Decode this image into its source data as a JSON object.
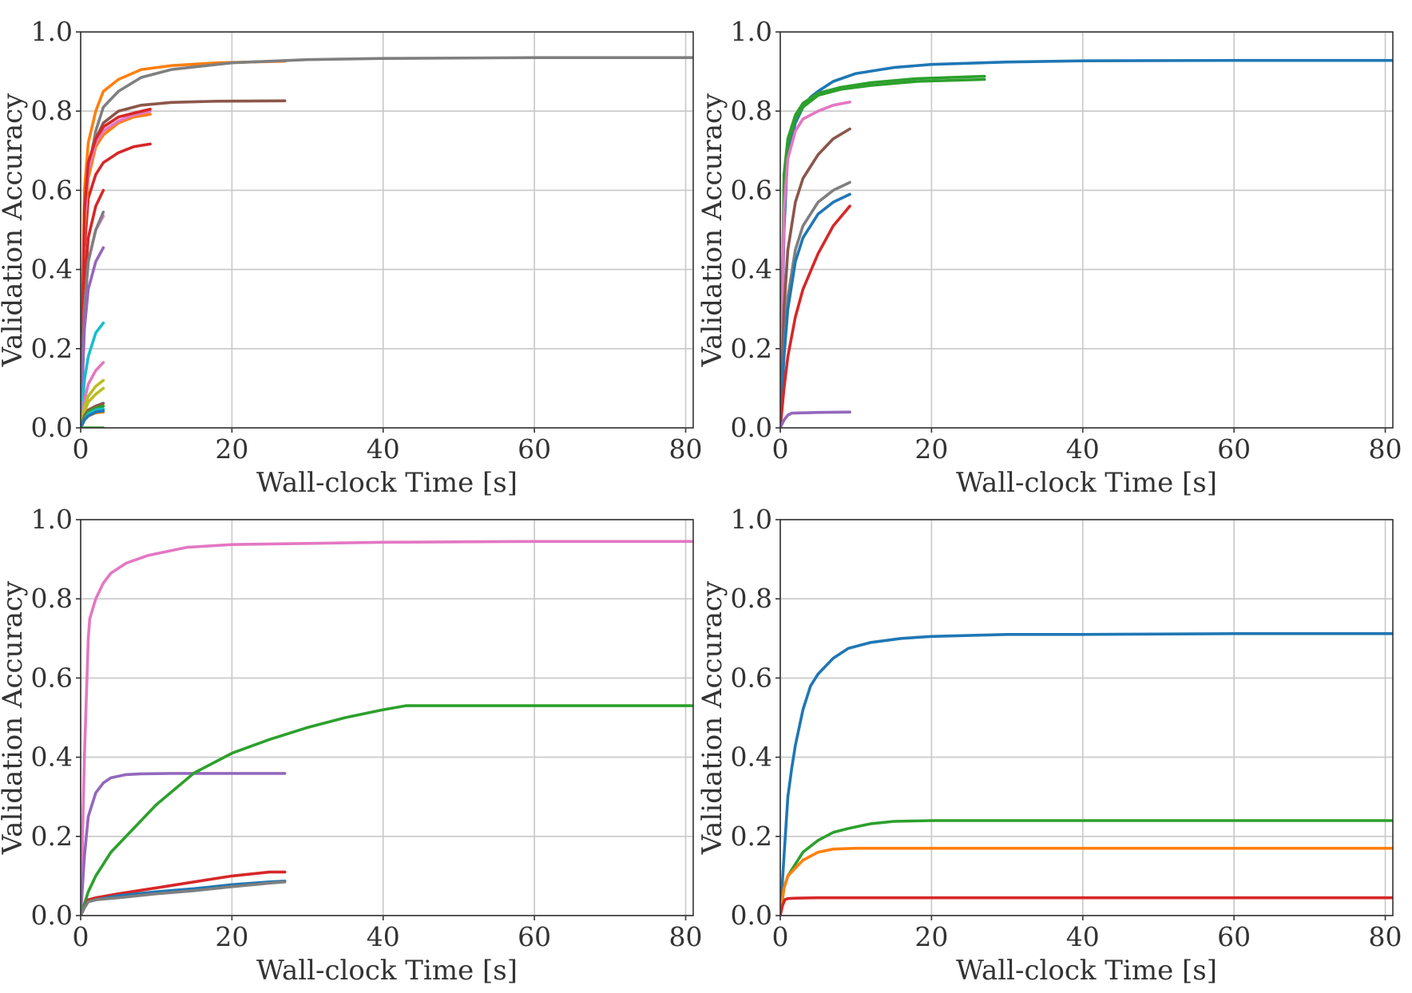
{
  "colors": {
    "blue": "#1f77b4",
    "orange": "#ff7f0e",
    "green": "#2ca02c",
    "red": "#d62728",
    "purple": "#9467bd",
    "brown": "#8c564b",
    "pink": "#e377c2",
    "gray": "#7f7f7f",
    "olive": "#bcbd22",
    "cyan": "#17becf"
  },
  "chart_data": [
    {
      "type": "line",
      "panel": "top-left",
      "xlabel": "Wall-clock Time [s]",
      "ylabel": "Validation Accuracy",
      "xlim": [
        0,
        81
      ],
      "ylim": [
        0,
        1.0
      ],
      "xticks": [
        0,
        20,
        40,
        60,
        80
      ],
      "yticks": [
        "0.0",
        "0.2",
        "0.4",
        "0.6",
        "0.8",
        "1.0"
      ],
      "grid": true,
      "series": [
        {
          "color": "orange",
          "x": [
            0,
            0.5,
            1,
            2,
            3,
            5,
            8,
            12,
            18,
            27
          ],
          "y": [
            0,
            0.6,
            0.72,
            0.8,
            0.85,
            0.88,
            0.905,
            0.915,
            0.922,
            0.926
          ]
        },
        {
          "color": "gray",
          "x": [
            0,
            0.5,
            1,
            2,
            3,
            5,
            8,
            12,
            20,
            30,
            40,
            60,
            81
          ],
          "y": [
            0,
            0.5,
            0.65,
            0.75,
            0.81,
            0.85,
            0.885,
            0.905,
            0.922,
            0.93,
            0.933,
            0.935,
            0.935
          ]
        },
        {
          "color": "brown",
          "x": [
            0,
            0.5,
            1,
            2,
            3,
            5,
            8,
            12,
            18,
            27
          ],
          "y": [
            0,
            0.5,
            0.65,
            0.73,
            0.77,
            0.8,
            0.815,
            0.822,
            0.825,
            0.826
          ]
        },
        {
          "color": "red",
          "x": [
            0,
            0.5,
            1,
            2,
            3,
            5,
            7,
            9.2
          ],
          "y": [
            0,
            0.45,
            0.58,
            0.64,
            0.67,
            0.695,
            0.71,
            0.717
          ]
        },
        {
          "color": "orange",
          "x": [
            0,
            0.5,
            1,
            2,
            3,
            5,
            7,
            9.2
          ],
          "y": [
            0,
            0.5,
            0.63,
            0.71,
            0.74,
            0.77,
            0.785,
            0.792
          ]
        },
        {
          "color": "pink",
          "x": [
            0,
            0.5,
            1,
            2,
            3,
            5,
            7,
            9.2
          ],
          "y": [
            0,
            0.52,
            0.65,
            0.72,
            0.75,
            0.775,
            0.79,
            0.8
          ]
        },
        {
          "color": "red",
          "x": [
            0,
            0.5,
            1,
            2,
            3,
            5,
            7,
            9.2
          ],
          "y": [
            0,
            0.55,
            0.67,
            0.73,
            0.76,
            0.785,
            0.795,
            0.805
          ]
        },
        {
          "color": "red",
          "x": [
            0,
            0.5,
            1,
            2,
            3
          ],
          "y": [
            0,
            0.35,
            0.48,
            0.56,
            0.6
          ]
        },
        {
          "color": "pink",
          "x": [
            0,
            0.5,
            1,
            2,
            3
          ],
          "y": [
            0,
            0.3,
            0.42,
            0.5,
            0.535
          ]
        },
        {
          "color": "gray",
          "x": [
            0,
            0.5,
            1,
            2,
            3
          ],
          "y": [
            0,
            0.3,
            0.42,
            0.5,
            0.545
          ]
        },
        {
          "color": "purple",
          "x": [
            0,
            0.5,
            1,
            2,
            3
          ],
          "y": [
            0,
            0.25,
            0.35,
            0.42,
            0.455
          ]
        },
        {
          "color": "cyan",
          "x": [
            0,
            0.5,
            1,
            2,
            3
          ],
          "y": [
            0,
            0.12,
            0.18,
            0.24,
            0.265
          ]
        },
        {
          "color": "pink",
          "x": [
            0,
            0.5,
            1,
            2,
            3
          ],
          "y": [
            0,
            0.07,
            0.11,
            0.145,
            0.165
          ]
        },
        {
          "color": "olive",
          "x": [
            0,
            0.5,
            1,
            2,
            3
          ],
          "y": [
            0,
            0.05,
            0.08,
            0.105,
            0.12
          ]
        },
        {
          "color": "olive",
          "x": [
            0,
            0.5,
            1,
            2,
            3
          ],
          "y": [
            0,
            0.04,
            0.065,
            0.085,
            0.1
          ]
        },
        {
          "color": "brown",
          "x": [
            0,
            0.5,
            1,
            2,
            3
          ],
          "y": [
            0,
            0.03,
            0.045,
            0.055,
            0.062
          ]
        },
        {
          "color": "green",
          "x": [
            0,
            0.5,
            1,
            2,
            3
          ],
          "y": [
            0,
            0.025,
            0.04,
            0.05,
            0.055
          ]
        },
        {
          "color": "cyan",
          "x": [
            0,
            0.5,
            1,
            2,
            3
          ],
          "y": [
            0,
            0.02,
            0.035,
            0.045,
            0.048
          ]
        },
        {
          "color": "orange",
          "x": [
            0,
            0.5,
            1,
            2,
            3
          ],
          "y": [
            0,
            0.02,
            0.03,
            0.038,
            0.04
          ]
        },
        {
          "color": "blue",
          "x": [
            0,
            0.5,
            1,
            2,
            3
          ],
          "y": [
            0,
            0.02,
            0.03,
            0.04,
            0.043
          ]
        },
        {
          "color": "green",
          "x": [
            0,
            3
          ],
          "y": [
            0,
            0
          ]
        }
      ]
    },
    {
      "type": "line",
      "panel": "top-right",
      "xlabel": "Wall-clock Time [s]",
      "ylabel": "Validation Accuracy",
      "xlim": [
        0,
        81
      ],
      "ylim": [
        0,
        1.0
      ],
      "xticks": [
        0,
        20,
        40,
        60,
        80
      ],
      "yticks": [
        "0.0",
        "0.2",
        "0.4",
        "0.6",
        "0.8",
        "1.0"
      ],
      "grid": true,
      "series": [
        {
          "color": "blue",
          "x": [
            0,
            0.5,
            1,
            2,
            3,
            4,
            5,
            7,
            10,
            15,
            20,
            30,
            40,
            60,
            81
          ],
          "y": [
            0,
            0.5,
            0.7,
            0.77,
            0.81,
            0.835,
            0.85,
            0.875,
            0.895,
            0.91,
            0.918,
            0.924,
            0.927,
            0.928,
            0.928
          ]
        },
        {
          "color": "green",
          "x": [
            0,
            0.5,
            1,
            2,
            3,
            5,
            8,
            12,
            18,
            27
          ],
          "y": [
            0,
            0.62,
            0.72,
            0.78,
            0.81,
            0.84,
            0.855,
            0.865,
            0.875,
            0.88
          ]
        },
        {
          "color": "green",
          "x": [
            0,
            0.5,
            1,
            2,
            3,
            5,
            8,
            12,
            18,
            27
          ],
          "y": [
            0,
            0.64,
            0.73,
            0.79,
            0.82,
            0.845,
            0.86,
            0.872,
            0.882,
            0.888
          ]
        },
        {
          "color": "pink",
          "x": [
            0,
            0.5,
            1,
            2,
            3,
            5,
            7,
            9.2
          ],
          "y": [
            0,
            0.55,
            0.68,
            0.75,
            0.78,
            0.8,
            0.815,
            0.823
          ]
        },
        {
          "color": "brown",
          "x": [
            0,
            0.5,
            1,
            2,
            3,
            5,
            7,
            9.2
          ],
          "y": [
            0,
            0.3,
            0.45,
            0.57,
            0.63,
            0.69,
            0.73,
            0.755
          ]
        },
        {
          "color": "gray",
          "x": [
            0,
            0.5,
            1,
            2,
            3,
            5,
            7,
            9.2
          ],
          "y": [
            0,
            0.2,
            0.33,
            0.45,
            0.51,
            0.57,
            0.6,
            0.62
          ]
        },
        {
          "color": "blue",
          "x": [
            0,
            0.5,
            1,
            2,
            3,
            5,
            7,
            9.2
          ],
          "y": [
            0,
            0.18,
            0.3,
            0.42,
            0.48,
            0.54,
            0.57,
            0.59
          ]
        },
        {
          "color": "red",
          "x": [
            0,
            0.5,
            1,
            2,
            3,
            5,
            7,
            9.2
          ],
          "y": [
            0,
            0.1,
            0.18,
            0.28,
            0.35,
            0.44,
            0.51,
            0.56
          ]
        },
        {
          "color": "purple",
          "x": [
            0,
            0.5,
            1,
            1.5,
            3,
            5,
            9.2
          ],
          "y": [
            0,
            0.02,
            0.032,
            0.037,
            0.038,
            0.039,
            0.04
          ]
        }
      ]
    },
    {
      "type": "line",
      "panel": "bottom-left",
      "xlabel": "Wall-clock Time [s]",
      "ylabel": "Validation Accuracy",
      "xlim": [
        0,
        81
      ],
      "ylim": [
        0,
        1.0
      ],
      "xticks": [
        0,
        20,
        40,
        60,
        80
      ],
      "yticks": [
        "0.0",
        "0.2",
        "0.4",
        "0.6",
        "0.8",
        "1.0"
      ],
      "grid": true,
      "series": [
        {
          "color": "pink",
          "x": [
            0,
            0.5,
            1,
            1.2,
            2,
            3,
            4,
            6,
            9,
            14,
            20,
            30,
            40,
            60,
            81
          ],
          "y": [
            0,
            0.4,
            0.7,
            0.75,
            0.8,
            0.84,
            0.865,
            0.89,
            0.91,
            0.93,
            0.937,
            0.94,
            0.943,
            0.945,
            0.945
          ]
        },
        {
          "color": "purple",
          "x": [
            0,
            0.5,
            1,
            2,
            3,
            4,
            6,
            8,
            12,
            20,
            27
          ],
          "y": [
            0,
            0.15,
            0.25,
            0.31,
            0.335,
            0.348,
            0.356,
            0.358,
            0.359,
            0.359,
            0.359
          ]
        },
        {
          "color": "green",
          "x": [
            0,
            1,
            2,
            4,
            7,
            10,
            15,
            20,
            25,
            30,
            35,
            40,
            43,
            60,
            81
          ],
          "y": [
            0,
            0.06,
            0.1,
            0.16,
            0.22,
            0.28,
            0.36,
            0.41,
            0.445,
            0.475,
            0.5,
            0.52,
            0.53,
            0.53,
            0.53
          ]
        },
        {
          "color": "red",
          "x": [
            0,
            0.5,
            1,
            2,
            5,
            10,
            15,
            20,
            25,
            27
          ],
          "y": [
            0,
            0.02,
            0.04,
            0.045,
            0.055,
            0.07,
            0.085,
            0.1,
            0.11,
            0.11
          ]
        },
        {
          "color": "blue",
          "x": [
            0,
            0.5,
            1,
            2,
            5,
            10,
            15,
            20,
            25,
            27
          ],
          "y": [
            0,
            0.02,
            0.035,
            0.04,
            0.05,
            0.06,
            0.068,
            0.078,
            0.085,
            0.087
          ]
        },
        {
          "color": "gray",
          "x": [
            0,
            0.5,
            1,
            2,
            5,
            10,
            15,
            20,
            25,
            27
          ],
          "y": [
            0,
            0.02,
            0.035,
            0.04,
            0.045,
            0.055,
            0.063,
            0.073,
            0.082,
            0.085
          ]
        }
      ]
    },
    {
      "type": "line",
      "panel": "bottom-right",
      "xlabel": "Wall-clock Time [s]",
      "ylabel": "Validation Accuracy",
      "xlim": [
        0,
        81
      ],
      "ylim": [
        0,
        1.0
      ],
      "xticks": [
        0,
        20,
        40,
        60,
        80
      ],
      "yticks": [
        "0.0",
        "0.2",
        "0.4",
        "0.6",
        "0.8",
        "1.0"
      ],
      "grid": true,
      "series": [
        {
          "color": "blue",
          "x": [
            0,
            0.5,
            1,
            1.5,
            2,
            3,
            4,
            5,
            7,
            9,
            12,
            16,
            20,
            30,
            40,
            60,
            81
          ],
          "y": [
            0,
            0.15,
            0.3,
            0.37,
            0.43,
            0.52,
            0.58,
            0.61,
            0.65,
            0.675,
            0.69,
            0.7,
            0.705,
            0.71,
            0.71,
            0.712,
            0.712
          ]
        },
        {
          "color": "green",
          "x": [
            0,
            0.5,
            1,
            2,
            3,
            5,
            7,
            9,
            12,
            15,
            20,
            40,
            60,
            81
          ],
          "y": [
            0,
            0.07,
            0.1,
            0.13,
            0.16,
            0.19,
            0.21,
            0.22,
            0.232,
            0.238,
            0.24,
            0.24,
            0.24,
            0.24
          ]
        },
        {
          "color": "orange",
          "x": [
            0,
            0.5,
            1,
            2,
            3,
            5,
            7,
            10,
            20,
            40,
            60,
            81
          ],
          "y": [
            0,
            0.07,
            0.1,
            0.12,
            0.14,
            0.16,
            0.168,
            0.17,
            0.17,
            0.17,
            0.17,
            0.17
          ]
        },
        {
          "color": "red",
          "x": [
            0,
            0.3,
            0.6,
            1,
            2,
            5,
            10,
            20,
            40,
            60,
            81
          ],
          "y": [
            0,
            0.025,
            0.04,
            0.043,
            0.044,
            0.045,
            0.045,
            0.045,
            0.045,
            0.045,
            0.045
          ]
        }
      ]
    }
  ]
}
